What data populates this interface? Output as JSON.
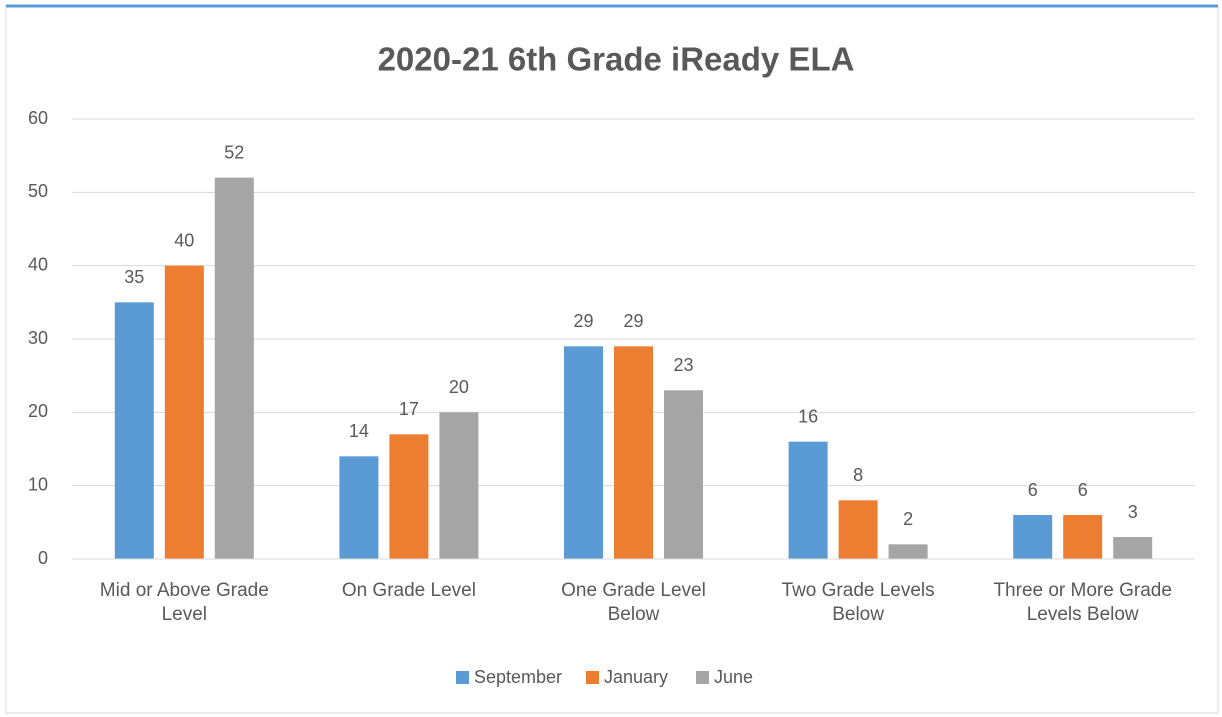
{
  "chart_data": {
    "type": "bar",
    "title": "2020-21 6th Grade iReady ELA",
    "categories": [
      "Mid or Above Grade Level",
      "On Grade Level",
      "One Grade Level Below",
      "Two Grade Levels Below",
      "Three or More Grade Levels Below"
    ],
    "series": [
      {
        "name": "September",
        "color": "#5b9bd5",
        "values": [
          35,
          14,
          29,
          16,
          6
        ]
      },
      {
        "name": "January",
        "color": "#ed7d31",
        "values": [
          40,
          17,
          29,
          8,
          6
        ]
      },
      {
        "name": "June",
        "color": "#a5a5a5",
        "values": [
          52,
          20,
          23,
          2,
          3
        ]
      }
    ],
    "ylim": [
      0,
      60
    ],
    "yticks": [
      0,
      10,
      20,
      30,
      40,
      50,
      60
    ],
    "grid": true,
    "legend": "bottom"
  }
}
